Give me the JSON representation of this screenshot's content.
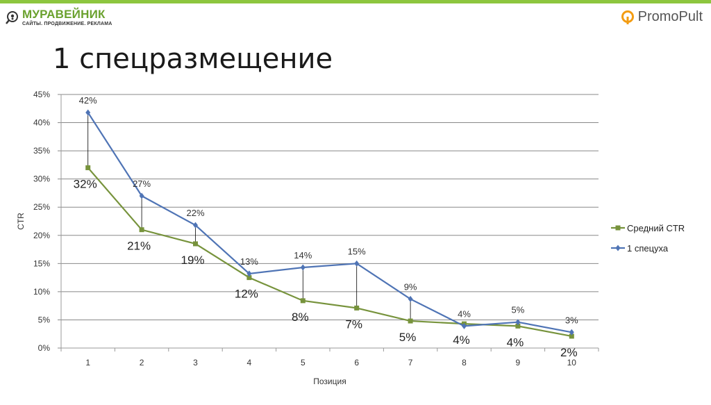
{
  "header": {
    "logo_left_name": "МУРАВЕЙНИК",
    "logo_left_sub": "САЙТЫ. ПРОДВИЖЕНИЕ. РЕКЛАМА",
    "logo_right": "PromoPult"
  },
  "slide": {
    "title": "1 спецразмещение"
  },
  "colors": {
    "accent_green": "#8dc63f",
    "series_green": "#77933c",
    "series_blue": "#4f74b5"
  },
  "chart_data": {
    "type": "line",
    "x": [
      "1",
      "2",
      "3",
      "4",
      "5",
      "6",
      "7",
      "8",
      "9",
      "10"
    ],
    "xlabel": "Позиция",
    "ylabel": "CTR",
    "ylim": [
      0,
      45
    ],
    "yticks": [
      "0%",
      "5%",
      "10%",
      "15%",
      "20%",
      "25%",
      "30%",
      "35%",
      "40%",
      "45%"
    ],
    "grid": true,
    "legend_position": "right",
    "series": [
      {
        "name": "Средний CTR",
        "values": [
          32,
          21,
          18.5,
          12.5,
          8.4,
          7.1,
          4.8,
          4.3,
          3.9,
          2.1
        ],
        "labels": [
          "32%",
          "21%",
          "19%",
          "12%",
          "8%",
          "7%",
          "5%",
          "4%",
          "4%",
          "2%"
        ]
      },
      {
        "name": "1 спецуха",
        "values": [
          41.8,
          27,
          21.8,
          13.2,
          14.3,
          15,
          8.7,
          3.9,
          4.6,
          2.8
        ],
        "labels": [
          "42%",
          "27%",
          "22%",
          "13%",
          "14%",
          "15%",
          "9%",
          "4%",
          "5%",
          "3%"
        ]
      }
    ]
  }
}
